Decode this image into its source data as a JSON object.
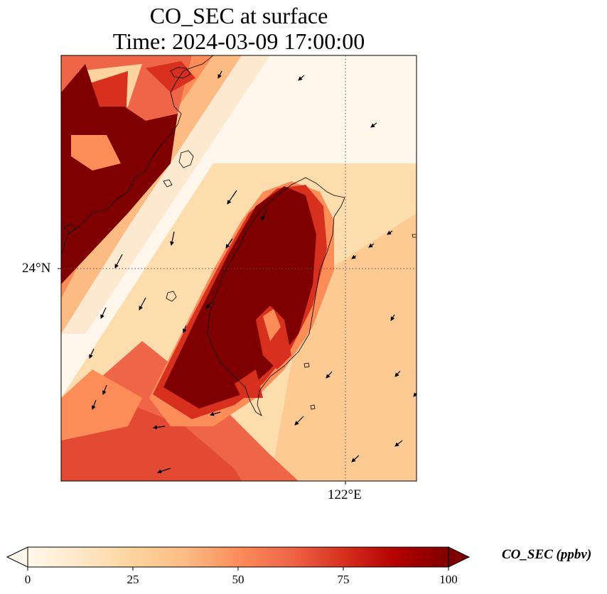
{
  "title": {
    "line1": "CO_SEC at surface",
    "line2": "Time: 2024-03-09 17:00:00"
  },
  "map": {
    "lat_gridline_label": "24°N",
    "lon_gridline_label": "122°E",
    "colormap": "OrRd",
    "colormap_stops": [
      "#fff7ec",
      "#fee8c8",
      "#fdd49e",
      "#fdbb84",
      "#fc8d59",
      "#ef6548",
      "#d7301f",
      "#b30000",
      "#7f0000"
    ],
    "coastline_color": "#000000",
    "gridline_style": "dotted",
    "wind_vectors": "present",
    "value_range": [
      0,
      100
    ]
  },
  "colorbar": {
    "title": "CO_SEC (ppbv)",
    "ticks": [
      "0",
      "25",
      "50",
      "75",
      "100"
    ],
    "extend": "both"
  }
}
